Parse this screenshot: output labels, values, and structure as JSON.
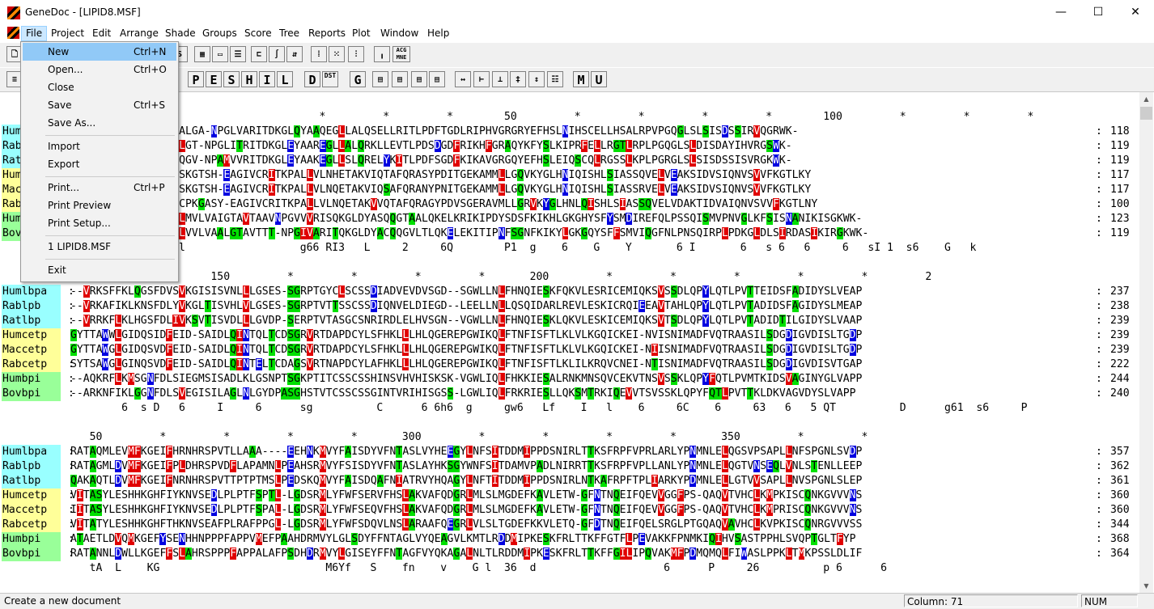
{
  "window": {
    "title": "GeneDoc - [LIPID8.MSF]",
    "min": "—",
    "max": "☐",
    "close": "✕"
  },
  "menubar": [
    "File",
    "Project",
    "Edit",
    "Arrange",
    "Shade",
    "Groups",
    "Score",
    "Tree",
    "Reports",
    "Plot",
    "Window",
    "Help"
  ],
  "file_menu": {
    "items": [
      {
        "label": "New",
        "shortcut": "Ctrl+N"
      },
      {
        "label": "Open...",
        "shortcut": "Ctrl+O"
      },
      {
        "label": "Close",
        "shortcut": ""
      },
      {
        "label": "Save",
        "shortcut": "Ctrl+S"
      },
      {
        "label": "Save As...",
        "shortcut": ""
      },
      {
        "label": "Import",
        "shortcut": ""
      },
      {
        "label": "Export",
        "shortcut": ""
      },
      {
        "label": "Print...",
        "shortcut": "Ctrl+P"
      },
      {
        "label": "Print Preview",
        "shortcut": ""
      },
      {
        "label": "Print Setup...",
        "shortcut": ""
      },
      {
        "label": "1 LIPID8.MSF",
        "shortcut": ""
      },
      {
        "label": "Exit",
        "shortcut": ""
      }
    ]
  },
  "toolbar2_letters": [
    "P",
    "E",
    "S",
    "H",
    "I",
    "L",
    "D",
    "G",
    "M",
    "U"
  ],
  "toolbar2_dest": "DST",
  "toolbar1_acgt": "ACG MNE",
  "blocks": [
    {
      "ruler": "                                       *         *         *        50         *         *         *         *        100         *         *         *",
      "rows": [
        {
          "name": "Humlbpa",
          "seq": "MLPS-ILLALLLTSTPEALGA-NPGLVARITDKGLQYAAQEGLLALQSELLRITLPDFTGDLRIPHVGRGRYEFHSLNIHSCELLHSALRPVPGQGLSLSISDSSIRVQGRWK-",
          "num": "118"
        },
        {
          "name": "Rablpb",
          "seq": "MLGSTILSLLLAAAPGALGT-NPGLITRITDKGLEYAAREGLLALQRKLLEVTLPDSDGDFRIKHFGRAQYKFYSLKIPRFELLRGTLRPLPGQGLSLDISDAYIHVRGSWK-",
          "num": "119"
        },
        {
          "name": "Ratlbp",
          "seq": "MLLP-TILGLLLSIPRTQGV-NPAMVVRITDKGLEYAAKEGLLSLQRELYKITLPDFSGDFKIKAVGRGQYEFHSLEIQSCQLRGSSLKPLPGRGLSLSISDSSISVRGKWK-",
          "num": "119"
        },
        {
          "name": "Humcetp",
          "seq": "MLAT---LALLGNAHACSKGTSH-EAGIVCRITKPALLVLNHETAKVIQTAFQRASYPDITGEKAMMLLGQVKYGLHNIQISHLSIASSQVELVEAKSIDVSIQNVSVVFKGTLKY",
          "num": "117"
        },
        {
          "name": "Maccetp",
          "seq": "MLAT---LALLGNVHACSKGTSH-EAGIVCRITKPALLVLNQETAKVIQSAFQRANYPNITGEKAMMLLGQVKYGLHNIQISHLSIASSRVELVEAKSIDVSIQNVSVVFKGTLKY",
          "num": "117"
        },
        {
          "name": "Rabcetp",
          "seq": "----------------ACPKGASY-EAGIVCRITKPALLVLNQETAKVVQTAFQRAGYPDVSGERAVMLLGRVKYGLHNLQISHLSIASSQVELVDAKTIDVAIQNVSVVFKGTLNY",
          "num": "100"
        },
        {
          "name": "Humbpi",
          "seq": "MRENMARGPCNAPRWVSLMVLVAIGTAVTAAVNPGVVVRISQKGLDYASQQGTAALQKELKRIKIPDYSDSFKIKHLGKGHYSFYSMDIREFQLPSSQISMVPNVGLKFSISNANIKISGKWK-",
          "num": "123"
        },
        {
          "name": "Bovbpi",
          "seq": "MRENVARGPCGAPRWATLVVLVAALGTAVTTT-NPGIVARITQKGLDYACQQGVLTLQKELEKITIPNFSGNFKIKYLGKGQYSFFSMVIQGFNLPNSQIRPLPDKGLDLSIRDASIKIRGKWK-",
          "num": "119"
        }
      ],
      "cons": "                 l                  g66 RI3   L     2     6Q        P1  g    6    G    Y       6 I       6   s 6   6     6   sI 1  s6    G   k"
    },
    {
      "ruler": "              *       150         *         *         *         *       200         *         *         *         *         *         2",
      "rows": [
        {
          "name": "Humlbpa",
          "seq": "--VRKSFFKLQGSFDVSVKGISISVNLLLGSES-SGRPTGYCLSCSSDIADVEVDVSGD--SGWLLNLFHNQIESKFQKVLESRICEMIQKSVSSDLQPYLQTLPVTTEIDSFADIDYSLVEAP",
          "num": "237"
        },
        {
          "name": "Rablpb",
          "seq": "--VRKAFIKLKNSFDLYVKGLTISVHLVLGSES-SGRPTVTTSSCSSDIQNVELDIEGD--LEELLNLLQSQIDARLREVLESKICRQIEEAVTAHLQPYLQTLPVTADIDSFAGIDYSLMEAP",
          "num": "238"
        },
        {
          "name": "Ratlbp",
          "seq": "--VRRKFLKLHGSFDLIVKSVTISVDLLLGVDP-SERPTVTASGCSNRIRDLELHVSGN--VGWLLNLFHNQIESKLQKVLESKICEMIQKSVTSDLQPYLQTLPVTADIDTILGIDYSLVAAP",
          "num": "239"
        },
        {
          "name": "Humcetp",
          "seq": "GYTTAWWLGIDQSIDFEID-SAIDLQINTQLTCDSGRVRTDAPDCYLSFHKLLLHLQGEREPGWIKQLFTNFISFTLKLVLKGQICKEI-NVISNIMADFVQTRAASILSDGDIGVDISLTGDP",
          "num": "239"
        },
        {
          "name": "Maccetp",
          "seq": "GYTTAWGLGIDQSVDFEID-SAIDLQINTQLTCDSGRVRTDAPDCYLSFHKLLLHLQGEREPGWIKQLFTNFISFTLKLVLKGQICKEI-NIISNIMADFVQTRAASILSDGDIGVDISLTGDP",
          "num": "239"
        },
        {
          "name": "Rabcetp",
          "seq": "SYTSAWGLGINQSVDFEID-SAIDLQINTELTCDAGSVRTNAPDCYLAFHKLLLHLQGEREPGWIKQLFTNFISFTLKLILKRQVCNEI-NTISNIMADFVQTRAASILSDGDIGVDISVTGAP",
          "num": "222"
        },
        {
          "name": "Humbpi",
          "seq": "--AQKRFLKMSGNFDLSIEGMSISADLKLGSNPTSGKPTITCSSCSSHINSVHVHISKSK-VGWLIQLFHKKIESALRNKMNSQVCEKVTNSVSSKLQPYFQTLPVMTKIDSVAGINYGLVAPP",
          "num": "244"
        },
        {
          "name": "Bovbpi",
          "seq": "--ARKNFIKLGGNFDLSVEGISILAGLNLGYDPASGHSTVTCSSCSSGINTVRIHISGSS-LGWLIQLFRKRIESLLQKSMTRKIQEVVTSVSSKLQPYFQTLPVTTKLDKVAGVDYSLVAPP",
          "num": "240"
        }
      ],
      "cons": "        6  s D   6     I     6      sg          C      6 6h6  g     gw6   Lf    I   l    6     6C    6     63   6   5 QT          D      g61  s6     P"
    },
    {
      "ruler": "   50         *         *         *         *       300         *         *         *         *       350         *         *",
      "rows": [
        {
          "name": "Humlbpa",
          "seq": "RATAQMLEVMFKGEIFHRNHRSPVTLLAAA----EEHNKMVYFAISDYVFNTASLVYHEEGYLNFSITDDMIPPDSNIRLTTKSFRPFVPRLARLYPNMNLELQGSVPSAPLLNFSPGNLSVDP",
          "num": "357"
        },
        {
          "name": "Rablpb",
          "seq": "RATAGMLDVMFKGEIFPLDHRSPVDFLAPAMNLPEAHSRMVYFSISDYVFNTASLAYHKSGYWNFSITDAMVPADLNIRRTTKSFRPFVPLLANLYPNMNLELQGTVNSEQLVNLSTENLLEEP",
          "num": "362"
        },
        {
          "name": "Ratlbp",
          "seq": "QAKAQTLDVMFKGEIFNRNHRSPVTTPTPTMSLPEDSKQMVYFAISDQAFNIATRVYHQAGYLNFTITDDMIPPDSNIRLNTKAFRPFTPLIARKYPDMNLELLGTVVSAPLLNVSPGNLSLEP",
          "num": "361"
        },
        {
          "name": "Humcetp",
          "seq": "VITASYLESHHKGHFIYKNVSEDLPLPTFSPTL-LGDSRMLYFWFSERVFHSLAKVAFQDGRLMLSLMGDEFKAVLETW-GFNTNQEIFQEVVGGFPS-QAQVTVHCLKMPKISCQNKGVVVNS",
          "num": "360"
        },
        {
          "name": "Maccetp",
          "seq": "IITASYLESHHKGHFIYKNVSEDLPLPTFSPAL-LGDSRMLYFWFSEQVFHSLAKVAFQDGRLMLSLMGDEFKAVLETW-GFNTNQEIFQEVVGGFPS-QAQVTVHCLKMPRISCQNKGVVVNS",
          "num": "360"
        },
        {
          "name": "Rabcetp",
          "seq": "VITATYLESHHKGHFTHKNVSEAFPLRAFPPGL-LGDSRMLYFWFSDQVLNSLARAAFQEGRLVLSLTGDEFKKVLETQ-GFDTNQEIFQELSRGLPTGQAQVAVHCLKVPKISCQNRGVVVSS",
          "num": "344"
        },
        {
          "name": "Humbpi",
          "seq": "ATAETLDVQMKGEFYSENHHNPPPFAPPVMEFPAAHDRMVYLGLSDYFFNTAGLVYQEAGVLKMTLRDDMIPKESKFRLTTKFFGTFLPEVAKKFPNMKIQIHVSASTPPHLSVQPTGLTFYP",
          "num": "368"
        },
        {
          "name": "Bovbpi",
          "seq": "RATANNLDWLLKGEFFSLAHRSPPPFAPPALAFPSDHDRMVYLGISEYFFNTAGFVYQKAGALNLTLRDDMIPKESKFRLTTKFFGILIPQVAKMFPDMQMQLFIWASLPPKLTMKPSSLDLIF",
          "num": "364"
        }
      ],
      "cons": "   tA  L    KG                          M6Yf   S    fn    v    G l  36  d                    6      P     26          p 6      6"
    }
  ],
  "status": {
    "message": "Create a new document",
    "column": "Column: 71",
    "num": "NUM"
  }
}
